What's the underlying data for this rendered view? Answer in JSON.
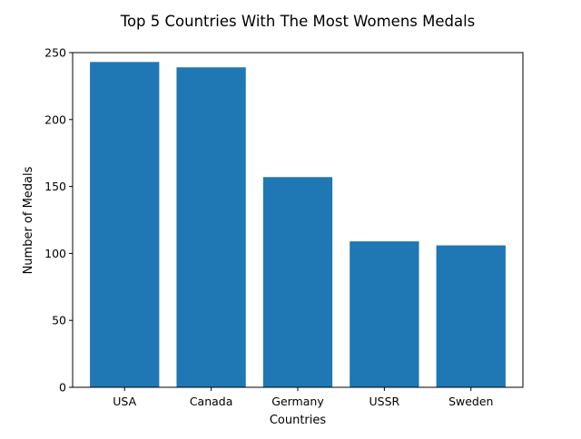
{
  "chart_data": {
    "type": "bar",
    "title": "Top 5 Countries With The Most Womens Medals",
    "xlabel": "Countries",
    "ylabel": "Number of Medals",
    "categories": [
      "USA",
      "Canada",
      "Germany",
      "USSR",
      "Sweden"
    ],
    "values": [
      243,
      239,
      157,
      109,
      106
    ],
    "ylim": [
      0,
      250
    ],
    "yticks": [
      0,
      50,
      100,
      150,
      200,
      250
    ],
    "grid": false,
    "legend": "none",
    "bar_color": "#1f77b4"
  }
}
